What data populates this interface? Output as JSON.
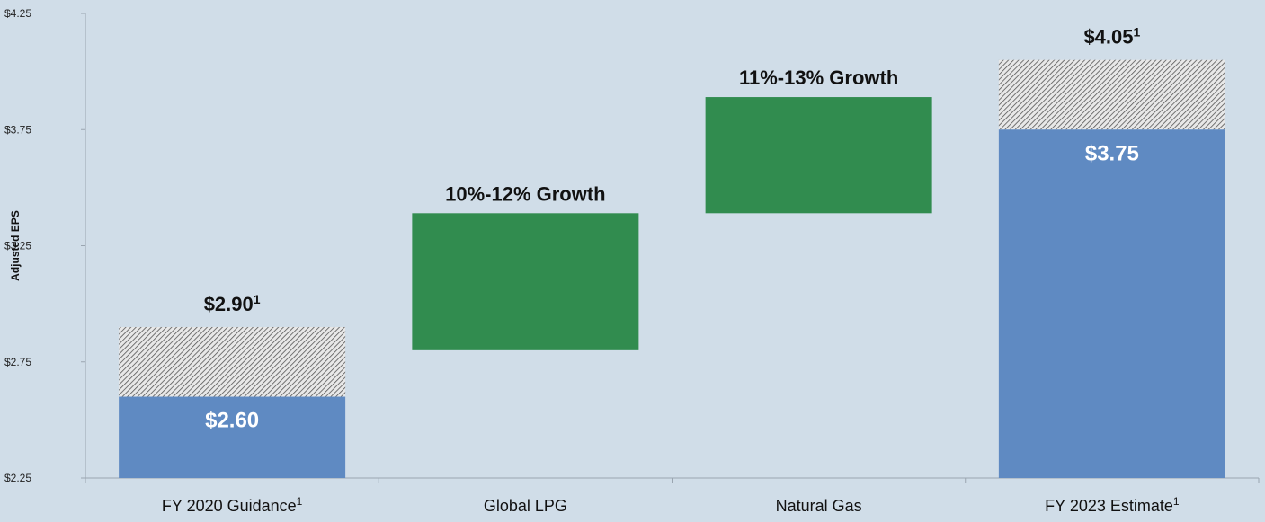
{
  "chart_data": {
    "type": "bar",
    "subtype": "waterfall",
    "ylabel": "Adjusted EPS",
    "xlabel": "",
    "ylim": [
      2.25,
      4.25
    ],
    "yticks": [
      "$2.25",
      "$2.75",
      "$3.25",
      "$3.75",
      "$4.25"
    ],
    "ytick_values": [
      2.25,
      2.75,
      3.25,
      3.75,
      4.25
    ],
    "grid": false,
    "legend": "none",
    "categories": [
      {
        "label": "FY 2020 Guidance",
        "sup": "1"
      },
      {
        "label": "Global LPG",
        "sup": ""
      },
      {
        "label": "Natural Gas",
        "sup": ""
      },
      {
        "label": "FY 2023 Estimate",
        "sup": "1"
      }
    ],
    "bars": [
      {
        "category": "FY 2020 Guidance",
        "kind": "total",
        "low": 2.25,
        "high": 2.6,
        "range_high": 2.9,
        "inner_label": "$2.60",
        "top_label": "$2.90",
        "top_sup": "1"
      },
      {
        "category": "Global LPG",
        "kind": "increment",
        "low": 2.8,
        "high": 3.39,
        "top_label": "10%-12% Growth",
        "top_sup": ""
      },
      {
        "category": "Natural Gas",
        "kind": "increment",
        "low": 3.39,
        "high": 3.89,
        "top_label": "11%-13% Growth",
        "top_sup": ""
      },
      {
        "category": "FY 2023 Estimate",
        "kind": "total",
        "low": 2.25,
        "high": 3.75,
        "range_high": 4.05,
        "inner_label": "$3.75",
        "top_label": "$4.05",
        "top_sup": "1"
      }
    ],
    "colors": {
      "total": "#5f8ac2",
      "increment": "#318c4f",
      "range_hatch_bg": "#e8e8e8",
      "range_hatch_line": "#555555",
      "background": "#d0dde8",
      "axis": "#9aa5b0"
    }
  }
}
